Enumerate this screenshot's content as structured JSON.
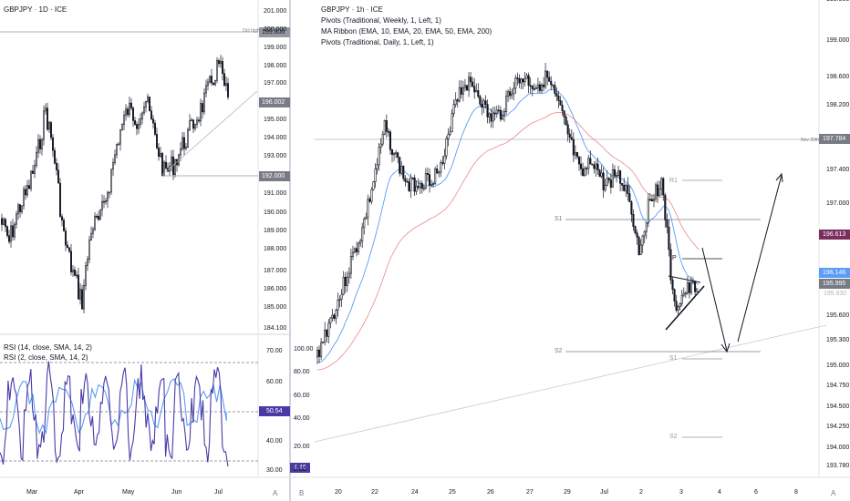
{
  "left_chart": {
    "title": "GBPJPY · 1D · ICE",
    "price_ticks": [
      "201.000",
      "200.000",
      "199.000",
      "198.000",
      "197.000",
      "196.002",
      "195.000",
      "194.000",
      "193.000",
      "192.000",
      "191.000",
      "190.000",
      "189.000",
      "188.000",
      "187.000",
      "186.000",
      "185.000",
      "184.100"
    ],
    "oct_high_label": "Oct high",
    "oct_high_price": "199.806",
    "last_price": "196.002",
    "support_price": "192.000",
    "time_labels": [
      "Mar",
      "Apr",
      "May",
      "Jun",
      "Jul"
    ],
    "axis_mode_button": "A"
  },
  "rsi_panel": {
    "label1": "RSI (14, close, SMA, 14, 2)",
    "label2": "RSI (2, close, SMA, 14, 2)",
    "ticks": [
      "70.00",
      "60.00",
      "40.00",
      "30.00"
    ],
    "value_14": "50.54",
    "value_2": "4.46"
  },
  "right_chart": {
    "title": "GBPJPY · 1h · ICE",
    "indicators": [
      "Pivots (Traditional, Weekly, 1, Left, 1)",
      "MA Ribbon (EMA, 10, EMA, 20, EMA, 50, EMA, 200)",
      "Pivots (Traditional, Daily, 1, Left, 1)"
    ],
    "price_ticks": [
      "199.500",
      "199.000",
      "198.600",
      "198.200",
      "197.400",
      "197.000",
      "196.300",
      "195.600",
      "195.300",
      "195.000",
      "194.750",
      "194.500",
      "194.250",
      "194.000",
      "193.780"
    ],
    "nov_label": "Nov 20th",
    "nov_price": "197.784",
    "tag_ma": "196.613",
    "tag_blue": "196.146",
    "tag_last": "195.995",
    "tag_faint": "195.930",
    "pivot_labels": [
      "R1",
      "S1",
      "P",
      "S2",
      "S1",
      "S2"
    ],
    "rsi_ticks": [
      "100.00",
      "80.00",
      "60.00",
      "40.00",
      "20.00",
      "0.00"
    ],
    "time_labels": [
      "20",
      "22",
      "24",
      "25",
      "26",
      "27",
      "29",
      "Jul",
      "2",
      "3",
      "4",
      "6",
      "8"
    ],
    "axis_mode_button": "A",
    "pane_button": "B"
  },
  "colors": {
    "candle": "#131722",
    "ema_fast": "#5b9cf6",
    "ema_slow": "#e57373",
    "rsi_14": "#5b9cf6",
    "rsi_2": "#4a3aa8",
    "ma_tag": "#7b2d5b",
    "blue_tag": "#5b9cf6",
    "gray_tag": "#9598a1"
  }
}
